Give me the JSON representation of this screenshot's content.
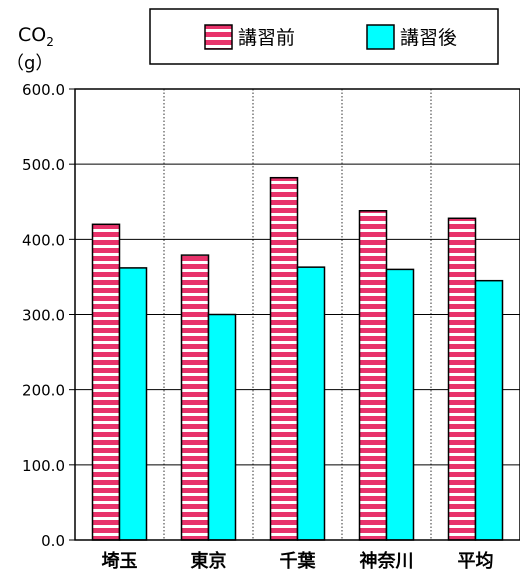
{
  "chart_data": {
    "type": "bar",
    "ylabel_main": "CO",
    "ylabel_sub": "2",
    "ylabel_unit": "（g）",
    "categories": [
      "埼玉",
      "東京",
      "千葉",
      "神奈川",
      "平均"
    ],
    "series": [
      {
        "name": "講習前",
        "values": [
          420,
          379,
          482,
          438,
          428
        ],
        "color": "#e8336b",
        "pattern": "horizontal-stripes"
      },
      {
        "name": "講習後",
        "values": [
          362,
          300,
          363,
          360,
          345
        ],
        "color": "#00ffff",
        "pattern": "solid"
      }
    ],
    "ylim": [
      0,
      600
    ],
    "yticks": [
      "0.0",
      "100.0",
      "200.0",
      "300.0",
      "400.0",
      "500.0",
      "600.0"
    ],
    "grid": true,
    "legend_position": "top"
  }
}
